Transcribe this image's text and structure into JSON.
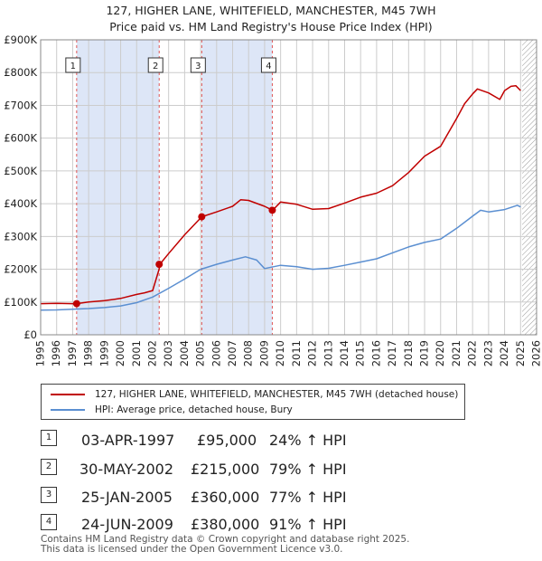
{
  "header": {
    "title": "127, HIGHER LANE, WHITEFIELD, MANCHESTER, M45 7WH",
    "subtitle": "Price paid vs. HM Land Registry's House Price Index (HPI)"
  },
  "chart_data": {
    "type": "line",
    "ylim": [
      0,
      900000
    ],
    "xlim": [
      1995,
      2026
    ],
    "y_ticks": [
      0,
      100000,
      200000,
      300000,
      400000,
      500000,
      600000,
      700000,
      800000,
      900000
    ],
    "y_tick_labels": [
      "£0",
      "£100K",
      "£200K",
      "£300K",
      "£400K",
      "£500K",
      "£600K",
      "£700K",
      "£800K",
      "£900K"
    ],
    "x_ticks": [
      "1995",
      "1996",
      "1997",
      "1998",
      "1999",
      "2000",
      "2001",
      "2002",
      "2003",
      "2004",
      "2005",
      "2006",
      "2007",
      "2008",
      "2009",
      "2010",
      "2011",
      "2012",
      "2013",
      "2014",
      "2015",
      "2016",
      "2017",
      "2018",
      "2019",
      "2020",
      "2021",
      "2022",
      "2023",
      "2024",
      "2025",
      "2026"
    ],
    "grid": true,
    "future_hatch_from": 2025.1,
    "series": [
      {
        "name": "127, HIGHER LANE, WHITEFIELD, MANCHESTER, M45 7WH (detached house)",
        "color": "#c00000",
        "points": [
          [
            1995.0,
            95000
          ],
          [
            1996.0,
            96000
          ],
          [
            1997.0,
            95000
          ],
          [
            1997.25,
            95000
          ],
          [
            1998.0,
            100000
          ],
          [
            1999.0,
            104000
          ],
          [
            2000.0,
            111000
          ],
          [
            2001.0,
            123000
          ],
          [
            2001.5,
            128000
          ],
          [
            2002.0,
            135000
          ],
          [
            2002.4,
            200000
          ],
          [
            2002.45,
            215000
          ],
          [
            2003.0,
            248000
          ],
          [
            2004.0,
            305000
          ],
          [
            2005.07,
            360000
          ],
          [
            2006.0,
            375000
          ],
          [
            2007.0,
            392000
          ],
          [
            2007.5,
            412000
          ],
          [
            2008.0,
            410000
          ],
          [
            2009.0,
            392000
          ],
          [
            2009.5,
            380000
          ],
          [
            2010.0,
            405000
          ],
          [
            2011.0,
            398000
          ],
          [
            2012.0,
            383000
          ],
          [
            2013.0,
            385000
          ],
          [
            2014.0,
            402000
          ],
          [
            2015.0,
            420000
          ],
          [
            2016.0,
            432000
          ],
          [
            2017.0,
            455000
          ],
          [
            2018.0,
            495000
          ],
          [
            2019.0,
            545000
          ],
          [
            2020.0,
            575000
          ],
          [
            2021.0,
            660000
          ],
          [
            2021.5,
            705000
          ],
          [
            2022.0,
            735000
          ],
          [
            2022.3,
            750000
          ],
          [
            2023.0,
            738000
          ],
          [
            2023.7,
            718000
          ],
          [
            2024.0,
            745000
          ],
          [
            2024.4,
            758000
          ],
          [
            2024.7,
            760000
          ],
          [
            2025.0,
            745000
          ]
        ]
      },
      {
        "name": "HPI: Average price, detached house, Bury",
        "color": "#5b8fd1",
        "points": [
          [
            1995.0,
            75000
          ],
          [
            1996.0,
            76000
          ],
          [
            1997.0,
            78000
          ],
          [
            1998.0,
            80000
          ],
          [
            1999.0,
            83000
          ],
          [
            2000.0,
            88000
          ],
          [
            2001.0,
            98000
          ],
          [
            2002.0,
            115000
          ],
          [
            2003.0,
            142000
          ],
          [
            2004.0,
            170000
          ],
          [
            2005.0,
            200000
          ],
          [
            2006.0,
            215000
          ],
          [
            2007.0,
            228000
          ],
          [
            2007.8,
            238000
          ],
          [
            2008.5,
            228000
          ],
          [
            2009.0,
            202000
          ],
          [
            2010.0,
            212000
          ],
          [
            2011.0,
            208000
          ],
          [
            2012.0,
            200000
          ],
          [
            2013.0,
            203000
          ],
          [
            2014.0,
            212000
          ],
          [
            2015.0,
            222000
          ],
          [
            2016.0,
            232000
          ],
          [
            2017.0,
            250000
          ],
          [
            2018.0,
            268000
          ],
          [
            2019.0,
            282000
          ],
          [
            2020.0,
            292000
          ],
          [
            2021.0,
            325000
          ],
          [
            2022.0,
            362000
          ],
          [
            2022.5,
            380000
          ],
          [
            2023.0,
            375000
          ],
          [
            2024.0,
            382000
          ],
          [
            2024.8,
            395000
          ],
          [
            2025.0,
            390000
          ]
        ]
      }
    ],
    "sales": [
      {
        "id": "1",
        "x": 1997.25,
        "price": 95000
      },
      {
        "id": "2",
        "x": 2002.41,
        "price": 215000
      },
      {
        "id": "3",
        "x": 2005.07,
        "price": 360000
      },
      {
        "id": "4",
        "x": 2009.48,
        "price": 380000
      }
    ],
    "shaded_periods": [
      [
        1997.25,
        2002.41
      ],
      [
        2005.07,
        2009.48
      ]
    ],
    "colors": {
      "marker": "#c00000",
      "shade": "#dde6f7",
      "vline": "#e05555",
      "grid": "#cccccc"
    }
  },
  "legend": {
    "items": [
      {
        "label": "127, HIGHER LANE, WHITEFIELD, MANCHESTER, M45 7WH (detached house)",
        "color": "#c00000"
      },
      {
        "label": "HPI: Average price, detached house, Bury",
        "color": "#5b8fd1"
      }
    ]
  },
  "sales_table": [
    {
      "id": "1",
      "date": "03-APR-1997",
      "price": "£95,000",
      "hpi": "24% ↑ HPI"
    },
    {
      "id": "2",
      "date": "30-MAY-2002",
      "price": "£215,000",
      "hpi": "79% ↑ HPI"
    },
    {
      "id": "3",
      "date": "25-JAN-2005",
      "price": "£360,000",
      "hpi": "77% ↑ HPI"
    },
    {
      "id": "4",
      "date": "24-JUN-2009",
      "price": "£380,000",
      "hpi": "91% ↑ HPI"
    }
  ],
  "footer": {
    "line1": "Contains HM Land Registry data © Crown copyright and database right 2025.",
    "line2": "This data is licensed under the Open Government Licence v3.0."
  }
}
